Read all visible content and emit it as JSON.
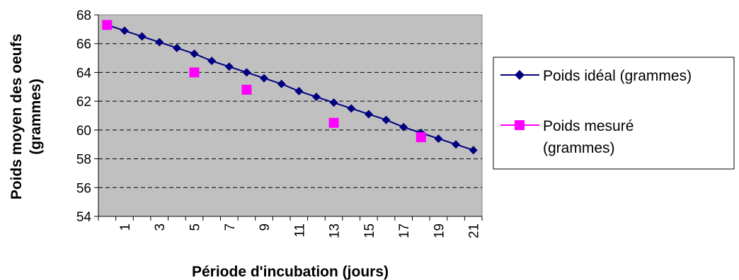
{
  "chart_data": {
    "type": "line",
    "title": "",
    "xlabel": "Période d'incubation (jours)",
    "ylabel_line1": "Poids moyen des oeufs",
    "ylabel_line2": "(grammes)",
    "ylim": [
      54,
      68
    ],
    "yticks": [
      54,
      56,
      58,
      60,
      62,
      64,
      66,
      68
    ],
    "x": [
      0,
      1,
      2,
      3,
      4,
      5,
      6,
      7,
      8,
      9,
      10,
      11,
      12,
      13,
      14,
      15,
      16,
      17,
      18,
      19,
      20,
      21
    ],
    "xtick_labels": [
      "1",
      "3",
      "5",
      "7",
      "9",
      "11",
      "13",
      "15",
      "17",
      "19",
      "21"
    ],
    "xtick_values": [
      1,
      3,
      5,
      7,
      9,
      11,
      13,
      15,
      17,
      19,
      21
    ],
    "grid": "horizontal dashed",
    "plot_background": "#C0C0C0",
    "legend_position": "right",
    "series": [
      {
        "name": "Poids idéal (grammes)",
        "marker": "diamond",
        "color": "#000080",
        "x": [
          0,
          1,
          2,
          3,
          4,
          5,
          6,
          7,
          8,
          9,
          10,
          11,
          12,
          13,
          14,
          15,
          16,
          17,
          18,
          19,
          20,
          21
        ],
        "values": [
          67.3,
          66.9,
          66.5,
          66.1,
          65.7,
          65.3,
          64.8,
          64.4,
          64.0,
          63.6,
          63.2,
          62.7,
          62.3,
          61.9,
          61.5,
          61.1,
          60.7,
          60.2,
          59.8,
          59.4,
          59.0,
          58.6
        ]
      },
      {
        "name_line1": "Poids mesuré",
        "name_line2": "(grammes)",
        "marker": "square",
        "color": "#FF00FF",
        "x": [
          0,
          5,
          8,
          13,
          18
        ],
        "values": [
          67.3,
          64.0,
          62.8,
          60.5,
          59.5
        ]
      }
    ]
  }
}
